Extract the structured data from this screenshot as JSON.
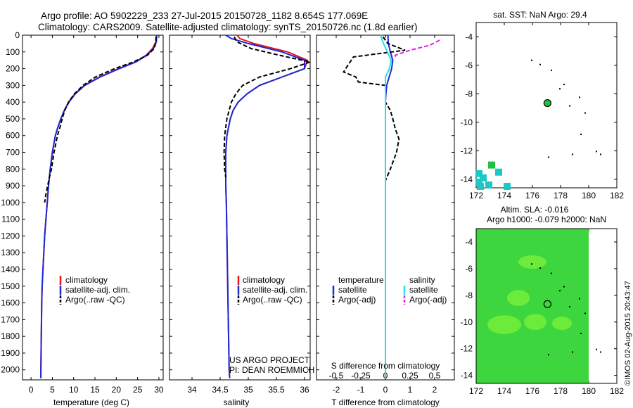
{
  "header": {
    "line1": "Argo profile: AO 5902229_233 27-Jul-2015 20150728_1182 8.654S 177.069E",
    "line2": "Climatology: CARS2009. Satellite-adjusted climatology: synTS_20150726.nc (1.8d earlier)"
  },
  "colors": {
    "climatology": "#e8141c",
    "satellite": "#1c2ad8",
    "argo": "#000000",
    "sal_satellite": "#22e2e2",
    "sal_argo": "#e81ce8",
    "sst_cyan": "#1ac8c8",
    "sst_green": "#22c040",
    "sla_field": "#3ed63e",
    "sla_light": "#7ef23a"
  },
  "legend_temp": {
    "climatology": "climatology",
    "satellite": "satellite-adj. clim.",
    "argo": "Argo(..raw -QC)"
  },
  "legend_sal": {
    "climatology": "climatology",
    "satellite": "satellite-adj. clim.",
    "argo": "Argo(..raw -QC)"
  },
  "legend_diff": {
    "temp_title": "temperature",
    "sal_title": "salinity",
    "temp_sat": "satellite",
    "temp_argo": "Argo(-adj)",
    "sal_sat": "satellite",
    "sal_argo": "Argo(-adj)"
  },
  "project": {
    "line1": "US ARGO PROJECT",
    "line2": "PI: DEAN ROEMMICH"
  },
  "panel_sst": {
    "title": "sat. SST: NaN Argo: 29.4"
  },
  "panel_sla": {
    "title1": "Altim. SLA: -0.016",
    "title2": "Argo h1000: -0.079 h2000: NaN"
  },
  "watermark": "©IMOS 02-Aug-2015 20:43:47",
  "chart_data": [
    {
      "type": "line",
      "name": "temperature",
      "xlabel": "temperature (deg C)",
      "ylabel": "",
      "xlim": [
        -2,
        31
      ],
      "ylim": [
        2060,
        0
      ],
      "xticks": [
        0,
        5,
        10,
        15,
        20,
        25,
        30
      ],
      "yticks": [
        0,
        100,
        200,
        300,
        400,
        500,
        600,
        700,
        800,
        900,
        1000,
        1100,
        1200,
        1300,
        1400,
        1500,
        1600,
        1700,
        1800,
        1900,
        2000
      ],
      "series": [
        {
          "name": "climatology",
          "color": "climatology",
          "dash": "",
          "x": [
            29.4,
            29.3,
            28.5,
            27.0,
            24.5,
            20.5,
            16.0,
            12.5,
            10.3,
            8.8,
            7.8,
            7.0,
            6.3,
            5.7,
            5.0,
            4.5,
            4.1,
            3.8,
            3.5,
            3.2,
            3.0,
            2.8,
            2.6,
            2.5,
            2.4,
            2.3,
            2.3
          ],
          "y": [
            0,
            40,
            80,
            120,
            160,
            200,
            250,
            300,
            350,
            400,
            450,
            500,
            550,
            600,
            700,
            800,
            900,
            1000,
            1100,
            1200,
            1300,
            1400,
            1500,
            1600,
            1800,
            2000,
            2050
          ]
        },
        {
          "name": "satellite-adj. clim.",
          "color": "satellite",
          "dash": "",
          "x": [
            29.5,
            29.4,
            28.7,
            27.2,
            24.6,
            20.7,
            16.2,
            12.6,
            10.4,
            8.9,
            7.8,
            7.0,
            6.3,
            5.7,
            5.0,
            4.5,
            4.1,
            3.8,
            3.5,
            3.2,
            3.0,
            2.8,
            2.6,
            2.5,
            2.4,
            2.3,
            2.3
          ],
          "y": [
            0,
            40,
            80,
            120,
            160,
            200,
            250,
            300,
            350,
            400,
            450,
            500,
            550,
            600,
            700,
            800,
            900,
            1000,
            1100,
            1200,
            1300,
            1400,
            1500,
            1600,
            1800,
            2000,
            2050
          ]
        },
        {
          "name": "Argo(..raw -QC)",
          "color": "argo",
          "dash": "6,3",
          "x": [
            29.3,
            29.3,
            28.9,
            27.3,
            24.0,
            19.6,
            15.1,
            12.2,
            10.2,
            8.8,
            7.9,
            7.3,
            6.8,
            6.2,
            5.4,
            4.8,
            4.3,
            3.9,
            3.5,
            3.2
          ],
          "y": [
            10,
            40,
            80,
            120,
            160,
            200,
            250,
            300,
            350,
            400,
            450,
            500,
            550,
            600,
            700,
            800,
            850,
            900,
            950,
            1000
          ]
        }
      ]
    },
    {
      "type": "line",
      "name": "salinity",
      "xlabel": "salinity",
      "ylabel": "",
      "xlim": [
        33.6,
        36.1
      ],
      "ylim": [
        2060,
        0
      ],
      "xticks": [
        34,
        34.5,
        35,
        35.5,
        36
      ],
      "series": [
        {
          "name": "climatology",
          "color": "climatology",
          "dash": "",
          "x": [
            34.8,
            34.85,
            35.1,
            35.7,
            36.05,
            36.0,
            35.6,
            35.2,
            34.98,
            34.82,
            34.73,
            34.68,
            34.62,
            34.6,
            34.6,
            34.6,
            34.61,
            34.62,
            34.63,
            34.64,
            34.65,
            34.66,
            34.67
          ],
          "y": [
            0,
            20,
            50,
            100,
            150,
            200,
            250,
            300,
            350,
            400,
            450,
            500,
            600,
            700,
            800,
            900,
            1000,
            1200,
            1400,
            1600,
            1800,
            2000,
            2050
          ]
        },
        {
          "name": "satellite-adj. clim.",
          "color": "satellite",
          "dash": "",
          "x": [
            34.6,
            34.7,
            35.0,
            35.6,
            36.0,
            36.0,
            35.6,
            35.2,
            34.98,
            34.82,
            34.73,
            34.68,
            34.62,
            34.6,
            34.6,
            34.6,
            34.61,
            34.62,
            34.63,
            34.64,
            34.65,
            34.66,
            34.67
          ],
          "y": [
            0,
            20,
            50,
            100,
            150,
            200,
            250,
            300,
            350,
            400,
            450,
            500,
            600,
            700,
            800,
            900,
            1000,
            1200,
            1400,
            1600,
            1800,
            2000,
            2050
          ]
        },
        {
          "name": "Argo(..raw -QC)",
          "color": "argo",
          "dash": "6,3",
          "x": [
            34.75,
            34.8,
            35.05,
            35.55,
            36.1,
            35.75,
            35.2,
            34.9,
            34.78,
            34.7,
            34.62,
            34.58,
            34.57,
            34.58,
            34.6
          ],
          "y": [
            10,
            40,
            80,
            120,
            160,
            200,
            250,
            300,
            350,
            400,
            500,
            600,
            700,
            800,
            850
          ]
        }
      ]
    },
    {
      "type": "line",
      "name": "difference",
      "xlabel": "T difference from climatology",
      "top_label": "S difference from climatology",
      "xlim": [
        -2.8,
        2.8
      ],
      "ylim": [
        2060,
        0
      ],
      "xticks_T": [
        -2,
        -1,
        0,
        1,
        2
      ],
      "xticks_T_labels": [
        "-2",
        "-1",
        "0",
        "1",
        "2"
      ],
      "xticks_S": [
        -0.5,
        -0.25,
        0,
        0.25,
        0.5
      ],
      "series": [
        {
          "name": "satellite",
          "color": "satellite",
          "dash": "",
          "x_units": "T",
          "x": [
            0.1,
            0.12,
            0.2,
            0.3,
            0.25,
            0.15,
            0.05,
            0.02,
            0.0,
            0.0,
            0.0,
            0.0,
            0.0
          ],
          "y": [
            0,
            50,
            100,
            150,
            200,
            250,
            300,
            350,
            400,
            600,
            1000,
            1500,
            2050
          ]
        },
        {
          "name": "Argo(-adj)",
          "color": "argo",
          "dash": "6,3",
          "x_units": "T",
          "x": [
            -0.1,
            0.1,
            0.8,
            -1.3,
            -1.7,
            -1.2,
            -1.1,
            0.0,
            0.0,
            0.2,
            0.3,
            0.4,
            0.55,
            0.45,
            0.2,
            0.0
          ],
          "y": [
            10,
            50,
            90,
            130,
            220,
            250,
            280,
            300,
            400,
            450,
            500,
            560,
            620,
            700,
            800,
            870
          ]
        },
        {
          "name": "salinity satellite",
          "color": "sal_satellite",
          "dash": "",
          "x_units": "S",
          "x": [
            -0.05,
            -0.02,
            0.02,
            0.06,
            0.04,
            0.0,
            0.0,
            0.0,
            0.0,
            0.0,
            0.0
          ],
          "y": [
            0,
            50,
            100,
            150,
            200,
            250,
            300,
            500,
            1000,
            1500,
            2050
          ]
        },
        {
          "name": "salinity Argo(-adj)",
          "color": "sal_argo",
          "dash": "6,3",
          "x_units": "S",
          "x": [
            0.55,
            0.45,
            0.25,
            0.1,
            0.1
          ],
          "y": [
            30,
            60,
            90,
            120,
            140
          ]
        }
      ]
    },
    {
      "type": "scatter",
      "name": "sat. SST map",
      "xlim": [
        172,
        182
      ],
      "ylim": [
        -14.6,
        -3
      ],
      "xticks": [
        172,
        174,
        176,
        178,
        180,
        182
      ],
      "yticks": [
        -4,
        -6,
        -8,
        -10,
        -12,
        -14
      ],
      "cells": [
        {
          "lon": 172.2,
          "lat": -13.6,
          "color": "sst_cyan"
        },
        {
          "lon": 172.5,
          "lat": -13.9,
          "color": "sst_cyan"
        },
        {
          "lon": 172.2,
          "lat": -14.2,
          "color": "sst_cyan"
        },
        {
          "lon": 172.9,
          "lat": -14.4,
          "color": "sst_cyan"
        },
        {
          "lon": 172.3,
          "lat": -14.5,
          "color": "sst_cyan"
        },
        {
          "lon": 173.1,
          "lat": -13.0,
          "color": "sst_green"
        },
        {
          "lon": 173.6,
          "lat": -13.5,
          "color": "sst_cyan"
        },
        {
          "lon": 174.2,
          "lat": -14.5,
          "color": "sst_cyan"
        }
      ],
      "argo_point": {
        "lon": 177.069,
        "lat": -8.654
      }
    },
    {
      "type": "heatmap",
      "name": "Altim. SLA map",
      "xlim": [
        172,
        182
      ],
      "ylim": [
        -14.6,
        -3
      ],
      "xticks": [
        172,
        174,
        176,
        178,
        180,
        182
      ],
      "yticks": [
        -4,
        -6,
        -8,
        -10,
        -12,
        -14
      ],
      "field_lon_range": [
        172,
        180
      ],
      "argo_point": {
        "lon": 177.069,
        "lat": -8.654
      }
    }
  ]
}
